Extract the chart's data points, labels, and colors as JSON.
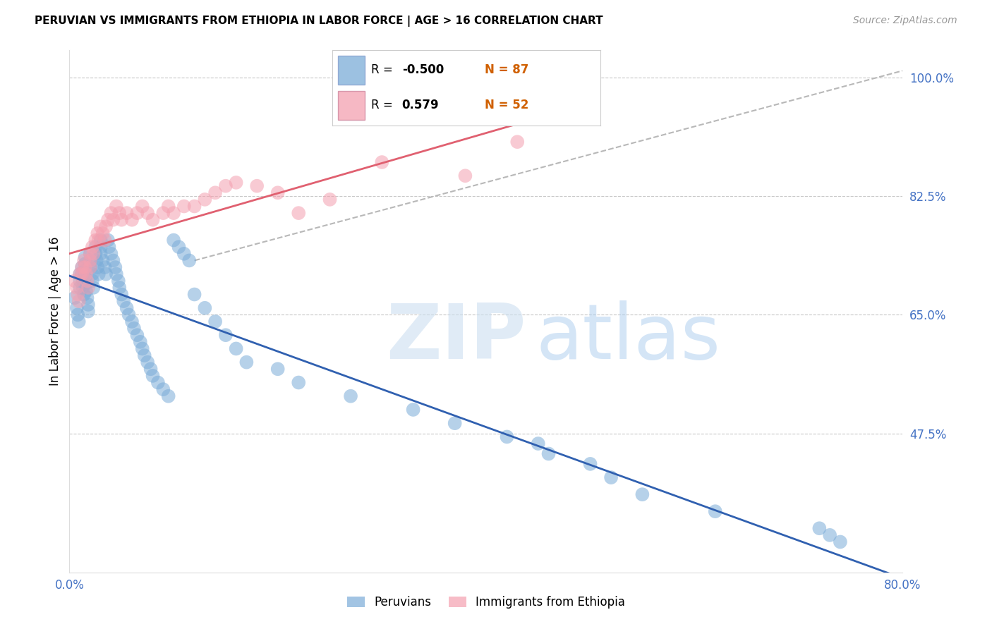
{
  "title": "PERUVIAN VS IMMIGRANTS FROM ETHIOPIA IN LABOR FORCE | AGE > 16 CORRELATION CHART",
  "source": "Source: ZipAtlas.com",
  "ylabel_left": "In Labor Force | Age > 16",
  "legend_label_blue": "Peruvians",
  "legend_label_pink": "Immigrants from Ethiopia",
  "R_blue": -0.5,
  "N_blue": 87,
  "R_pink": 0.579,
  "N_pink": 52,
  "x_min": 0.0,
  "x_max": 0.8,
  "y_min": 0.27,
  "y_max": 1.04,
  "yticks_right": [
    1.0,
    0.825,
    0.65,
    0.475
  ],
  "ytick_labels_right": [
    "100.0%",
    "82.5%",
    "65.0%",
    "47.5%"
  ],
  "xticks": [
    0.0,
    0.2,
    0.4,
    0.6,
    0.8
  ],
  "xtick_labels": [
    "0.0%",
    "",
    "",
    "",
    "80.0%"
  ],
  "blue_color": "#7BACD8",
  "pink_color": "#F4A0B0",
  "trend_blue_color": "#3060B0",
  "trend_pink_color": "#E06070",
  "dashed_color": "#B8B8B8",
  "axis_color": "#4472C4",
  "grid_color": "#C8C8C8",
  "N_color": "#D06000",
  "blue_x": [
    0.005,
    0.007,
    0.008,
    0.009,
    0.01,
    0.01,
    0.01,
    0.012,
    0.012,
    0.013,
    0.013,
    0.014,
    0.015,
    0.015,
    0.015,
    0.015,
    0.015,
    0.016,
    0.017,
    0.018,
    0.018,
    0.02,
    0.02,
    0.02,
    0.022,
    0.022,
    0.023,
    0.025,
    0.025,
    0.026,
    0.027,
    0.028,
    0.03,
    0.03,
    0.03,
    0.032,
    0.034,
    0.035,
    0.037,
    0.038,
    0.04,
    0.042,
    0.044,
    0.045,
    0.047,
    0.048,
    0.05,
    0.052,
    0.055,
    0.057,
    0.06,
    0.062,
    0.065,
    0.068,
    0.07,
    0.072,
    0.075,
    0.078,
    0.08,
    0.085,
    0.09,
    0.095,
    0.1,
    0.105,
    0.11,
    0.115,
    0.12,
    0.13,
    0.14,
    0.15,
    0.16,
    0.17,
    0.2,
    0.22,
    0.27,
    0.33,
    0.37,
    0.42,
    0.45,
    0.46,
    0.5,
    0.52,
    0.55,
    0.62,
    0.72,
    0.73,
    0.74
  ],
  "blue_y": [
    0.675,
    0.66,
    0.65,
    0.64,
    0.71,
    0.7,
    0.69,
    0.72,
    0.71,
    0.7,
    0.69,
    0.68,
    0.735,
    0.725,
    0.715,
    0.705,
    0.695,
    0.685,
    0.675,
    0.665,
    0.655,
    0.74,
    0.73,
    0.72,
    0.71,
    0.7,
    0.69,
    0.75,
    0.74,
    0.73,
    0.72,
    0.71,
    0.76,
    0.75,
    0.74,
    0.73,
    0.72,
    0.71,
    0.76,
    0.75,
    0.74,
    0.73,
    0.72,
    0.71,
    0.7,
    0.69,
    0.68,
    0.67,
    0.66,
    0.65,
    0.64,
    0.63,
    0.62,
    0.61,
    0.6,
    0.59,
    0.58,
    0.57,
    0.56,
    0.55,
    0.54,
    0.53,
    0.76,
    0.75,
    0.74,
    0.73,
    0.68,
    0.66,
    0.64,
    0.62,
    0.6,
    0.58,
    0.57,
    0.55,
    0.53,
    0.51,
    0.49,
    0.47,
    0.46,
    0.445,
    0.43,
    0.41,
    0.385,
    0.36,
    0.335,
    0.325,
    0.315
  ],
  "pink_x": [
    0.005,
    0.007,
    0.008,
    0.009,
    0.01,
    0.012,
    0.012,
    0.014,
    0.015,
    0.016,
    0.017,
    0.018,
    0.02,
    0.02,
    0.02,
    0.022,
    0.023,
    0.025,
    0.027,
    0.028,
    0.03,
    0.032,
    0.034,
    0.035,
    0.037,
    0.04,
    0.042,
    0.045,
    0.048,
    0.05,
    0.055,
    0.06,
    0.065,
    0.07,
    0.075,
    0.08,
    0.09,
    0.095,
    0.1,
    0.11,
    0.12,
    0.13,
    0.14,
    0.15,
    0.16,
    0.18,
    0.2,
    0.22,
    0.25,
    0.3,
    0.38,
    0.43
  ],
  "pink_y": [
    0.7,
    0.69,
    0.68,
    0.67,
    0.71,
    0.72,
    0.71,
    0.73,
    0.72,
    0.71,
    0.7,
    0.69,
    0.74,
    0.73,
    0.72,
    0.75,
    0.74,
    0.76,
    0.77,
    0.76,
    0.78,
    0.77,
    0.76,
    0.78,
    0.79,
    0.8,
    0.79,
    0.81,
    0.8,
    0.79,
    0.8,
    0.79,
    0.8,
    0.81,
    0.8,
    0.79,
    0.8,
    0.81,
    0.8,
    0.81,
    0.81,
    0.82,
    0.83,
    0.84,
    0.845,
    0.84,
    0.83,
    0.8,
    0.82,
    0.875,
    0.855,
    0.905
  ]
}
